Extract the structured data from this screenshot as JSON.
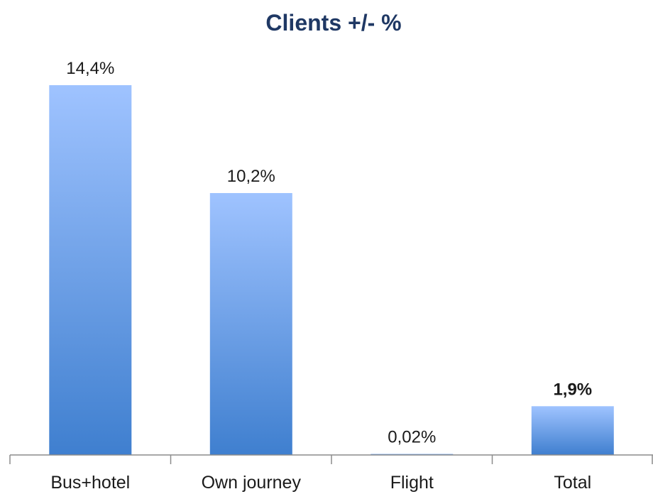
{
  "chart_data": {
    "type": "bar",
    "title": "Clients +/- %",
    "categories": [
      "Bus+hotel",
      "Own journey",
      "Flight",
      "Total"
    ],
    "values": [
      14.4,
      10.2,
      0.02,
      1.9
    ],
    "data_labels": [
      "14,4%",
      "10,2%",
      "0,02%",
      "1,9%"
    ],
    "bold_labels": [
      false,
      false,
      false,
      true
    ],
    "ylim": [
      0,
      14.4
    ],
    "xlabel": "",
    "ylabel": "",
    "grid": false,
    "legend": "none",
    "colors": {
      "bar_top": "#9fc3ff",
      "bar_bottom": "#3f7fcf",
      "axis": "#8c8c8c",
      "title": "#1f3864",
      "text": "#1a1a1a"
    }
  }
}
